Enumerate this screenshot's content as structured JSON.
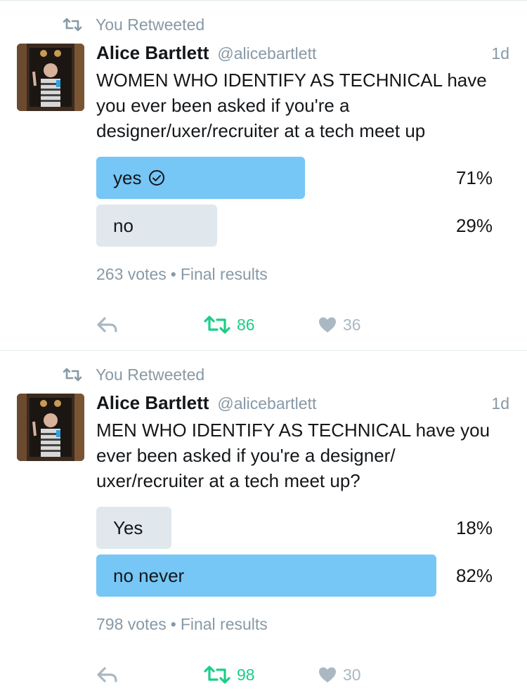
{
  "colors": {
    "winner_bar": "#76c6f6",
    "loser_bar": "#e1e8ed",
    "muted_text": "#8899a6",
    "retweet_green": "#19cf86",
    "icon_gray": "#aab8c2"
  },
  "tweets": [
    {
      "retweet_label": "You Retweeted",
      "author_name": "Alice Bartlett",
      "author_handle": "@alicebartlett",
      "time": "1d",
      "text": "WOMEN WHO IDENTIFY AS TECHNICAL have you ever been asked if you're a designer/uxer/recruiter at a tech meet up",
      "poll": {
        "options": [
          {
            "label": "yes",
            "percent_label": "71%",
            "percent": 71,
            "selected": true,
            "winner": true
          },
          {
            "label": "no",
            "percent_label": "29%",
            "percent": 29,
            "selected": false,
            "winner": false
          }
        ],
        "votes": "263 votes",
        "status": "Final results"
      },
      "actions": {
        "reply_icon": "reply-icon",
        "retweet_icon": "retweet-icon",
        "retweet_count": "86",
        "like_icon": "heart-icon",
        "like_count": "36"
      }
    },
    {
      "retweet_label": "You Retweeted",
      "author_name": "Alice Bartlett",
      "author_handle": "@alicebartlett",
      "time": "1d",
      "text": "MEN WHO IDENTIFY AS TECHNICAL have you ever been asked if you're a designer/ uxer/recruiter at a tech meet up?",
      "poll": {
        "options": [
          {
            "label": "Yes",
            "percent_label": "18%",
            "percent": 18,
            "selected": false,
            "winner": false
          },
          {
            "label": "no never",
            "percent_label": "82%",
            "percent": 82,
            "selected": false,
            "winner": true
          }
        ],
        "votes": "798 votes",
        "status": "Final results"
      },
      "actions": {
        "reply_icon": "reply-icon",
        "retweet_icon": "retweet-icon",
        "retweet_count": "98",
        "like_icon": "heart-icon",
        "like_count": "30"
      }
    }
  ]
}
